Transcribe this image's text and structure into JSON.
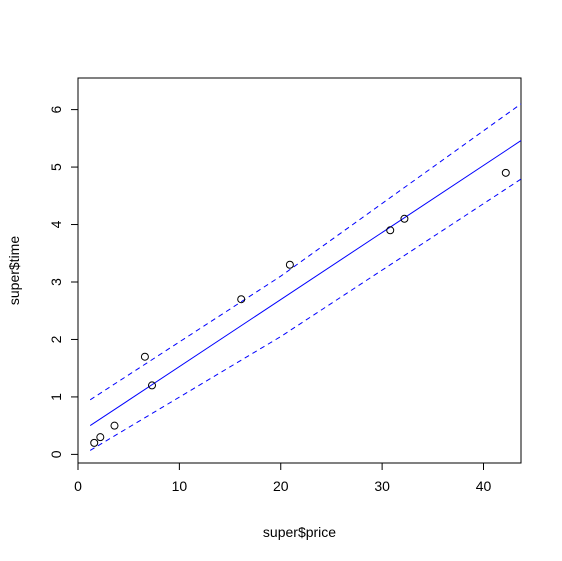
{
  "chart_data": {
    "type": "scatter",
    "xlabel": "super$price",
    "ylabel": "super$time",
    "xlim": [
      0,
      43.7
    ],
    "ylim": [
      -0.15,
      6.55
    ],
    "x_ticks": [
      0,
      10,
      20,
      30,
      40
    ],
    "y_ticks": [
      0,
      1,
      2,
      3,
      4,
      5,
      6
    ],
    "points": {
      "x": [
        1.6,
        2.2,
        3.6,
        6.6,
        7.3,
        16.1,
        20.9,
        30.8,
        32.2,
        42.2
      ],
      "y": [
        0.2,
        0.3,
        0.5,
        1.7,
        1.2,
        2.7,
        3.3,
        3.9,
        4.1,
        4.9
      ]
    },
    "fit_line": {
      "x": [
        1.2,
        43.7
      ],
      "y": [
        0.5,
        5.46
      ]
    },
    "interval_upper": {
      "x": [
        1.2,
        20,
        43.7
      ],
      "y": [
        0.95,
        3.1,
        6.1
      ]
    },
    "interval_lower": {
      "x": [
        1.2,
        20,
        43.7
      ],
      "y": [
        0.07,
        2.05,
        4.79
      ]
    },
    "colors": {
      "fit": "#0000ff",
      "interval": "#0000ff",
      "points": "#000000",
      "axis": "#000000"
    },
    "grid": false,
    "legend": "none"
  }
}
